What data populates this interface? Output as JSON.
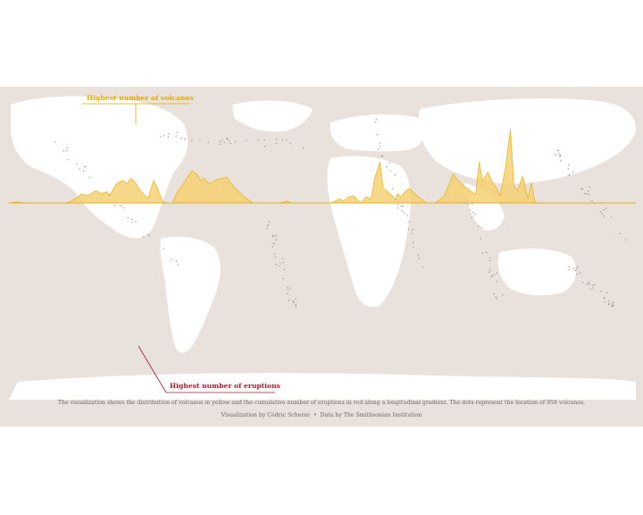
{
  "chart_data": {
    "type": "area",
    "description_note": "",
    "x_unit": "longitude (degrees)",
    "xlim": [
      -180,
      180
    ],
    "series": [
      {
        "name": "",
        "color": "#f6d173",
        "stroke": "#e8a803",
        "direction": "up",
        "x": [
          -180,
          -175,
          -172,
          -165,
          -160,
          -155,
          -152,
          -148,
          -145,
          -142,
          -138,
          -135,
          -130,
          -127,
          -124,
          -122,
          -120,
          -118,
          -115,
          -112,
          -110,
          -108,
          -105,
          -103,
          -100,
          -97,
          -95,
          -92,
          -90,
          -88,
          -86,
          -84,
          -82,
          -80,
          -78,
          -75,
          -72,
          -70,
          -68,
          -65,
          -60,
          -55,
          -50,
          -45,
          -40,
          -35,
          -30,
          -27,
          -25,
          -22,
          -20,
          -18,
          -15,
          -10,
          -5,
          0,
          5,
          10,
          12,
          15,
          18,
          20,
          22,
          25,
          28,
          30,
          33,
          35,
          37,
          38,
          40,
          42,
          43,
          45,
          48,
          50,
          55,
          60,
          65,
          70,
          75,
          80,
          85,
          88,
          90,
          92,
          95,
          98,
          100,
          102,
          105,
          108,
          110,
          112,
          115,
          118,
          120,
          122,
          123,
          125,
          127,
          130,
          132,
          135,
          137,
          139,
          140,
          142,
          143,
          145,
          148,
          150,
          152,
          155,
          158,
          160,
          163,
          165,
          168,
          170,
          172,
          175,
          178,
          180
        ],
        "values": [
          0,
          1,
          0,
          0,
          0,
          0,
          0,
          0,
          1,
          4,
          9,
          7,
          12,
          9,
          11,
          7,
          14,
          19,
          22,
          19,
          24,
          21,
          13,
          9,
          5,
          22,
          16,
          2,
          0,
          0,
          0,
          8,
          14,
          18,
          24,
          31,
          28,
          22,
          24,
          19,
          23,
          25,
          14,
          6,
          0,
          0,
          0,
          0,
          0,
          1,
          2,
          0,
          0,
          0,
          0,
          0,
          0,
          4,
          2,
          6,
          7,
          3,
          0,
          6,
          4,
          24,
          40,
          14,
          12,
          10,
          7,
          3,
          9,
          6,
          12,
          14,
          6,
          0,
          0,
          7,
          28,
          18,
          12,
          8,
          40,
          22,
          30,
          19,
          14,
          7,
          33,
          72,
          16,
          12,
          26,
          4,
          20,
          2,
          0,
          0,
          0,
          0,
          0,
          0,
          0,
          0,
          0,
          0,
          0,
          0,
          0,
          0,
          0,
          0,
          0,
          0,
          0,
          0,
          0,
          0,
          0,
          0,
          0,
          0
        ]
      },
      {
        "name": "",
        "color": "#de6a78",
        "stroke": "#a51d2d",
        "direction": "down",
        "x": [],
        "values": []
      }
    ],
    "annotations": [
      {
        "text": "Highest number of volcanos"
      },
      {
        "text": "Highest number of eruptions"
      }
    ]
  },
  "annotations": {
    "volcanos": "Highest number of volcanos",
    "eruptions": "Highest number of eruptions"
  },
  "caption": "The visualization shows the distribution of volcanos in yellow and the cumulative number of eruptions in red along a longitudinal gradient. The dots represent the location of 958 volcanos.",
  "credits": {
    "author": "Visualization by Cédric Scherer",
    "separator": "•",
    "source": "Data by The Smithsonian Institution"
  },
  "colors": {
    "background": "#e9e1db",
    "land": "#ffffff",
    "volcanos_fill": "#f6d173",
    "volcanos_stroke": "#e8a803",
    "eruptions_fill": "#de6a78",
    "eruptions_stroke": "#a51d2d",
    "dots": "#8a8580"
  }
}
